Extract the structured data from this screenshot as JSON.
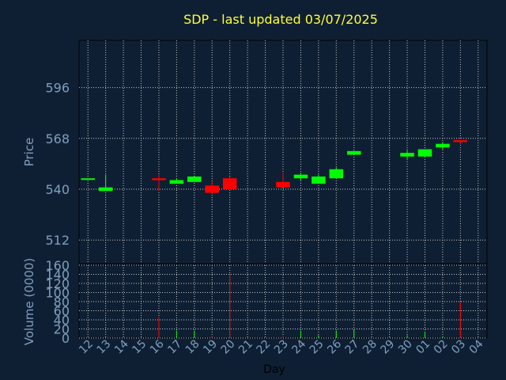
{
  "chart_data": {
    "type": "candlestick",
    "title": "SDP - last updated 03/07/2025",
    "xlabel": "Day",
    "colors": {
      "background": "#0f1f33",
      "frame": "#000000",
      "grid": "#c8c8c8",
      "tick_text": "#7f9fbf",
      "title": "#ffff33",
      "up": "#00ff00",
      "down": "#ff0000"
    },
    "days": [
      "12",
      "13",
      "14",
      "15",
      "16",
      "17",
      "18",
      "19",
      "20",
      "21",
      "22",
      "23",
      "24",
      "25",
      "26",
      "27",
      "28",
      "29",
      "30",
      "01",
      "02",
      "03",
      "04"
    ],
    "price_panel": {
      "ylabel": "Price",
      "yticks": [
        512,
        540,
        568,
        596
      ],
      "ylim": [
        499,
        622
      ],
      "candles": [
        {
          "day": "12",
          "open": 546,
          "close": 546,
          "high": 546,
          "low": 546
        },
        {
          "day": "13",
          "open": 539,
          "close": 541,
          "high": 548,
          "low": 539
        },
        {
          "day": "16",
          "open": 546,
          "close": 545,
          "high": 548,
          "low": 539
        },
        {
          "day": "17",
          "open": 543,
          "close": 545,
          "high": 546,
          "low": 543
        },
        {
          "day": "18",
          "open": 544,
          "close": 547,
          "high": 547,
          "low": 544
        },
        {
          "day": "19",
          "open": 542,
          "close": 538,
          "high": 544,
          "low": 538
        },
        {
          "day": "20",
          "open": 546,
          "close": 540,
          "high": 547,
          "low": 540
        },
        {
          "day": "23",
          "open": 544,
          "close": 541,
          "high": 549,
          "low": 541
        },
        {
          "day": "24",
          "open": 546,
          "close": 548,
          "high": 549,
          "low": 545
        },
        {
          "day": "25",
          "open": 543,
          "close": 547,
          "high": 548,
          "low": 543
        },
        {
          "day": "26",
          "open": 546,
          "close": 551,
          "high": 552,
          "low": 546
        },
        {
          "day": "27",
          "open": 559,
          "close": 561,
          "high": 561,
          "low": 559
        },
        {
          "day": "30",
          "open": 558,
          "close": 560,
          "high": 562,
          "low": 556
        },
        {
          "day": "01",
          "open": 558,
          "close": 562,
          "high": 562,
          "low": 558
        },
        {
          "day": "02",
          "open": 563,
          "close": 565,
          "high": 566,
          "low": 562
        },
        {
          "day": "03",
          "open": 567,
          "close": 566,
          "high": 567,
          "low": 565
        }
      ]
    },
    "volume_panel": {
      "ylabel": "Volume (0000)",
      "yticks": [
        0,
        20,
        40,
        60,
        80,
        100,
        120,
        140,
        160
      ],
      "ylim": [
        0,
        160
      ],
      "bars": [
        {
          "day": "16",
          "value": 46,
          "direction": "down"
        },
        {
          "day": "17",
          "value": 16,
          "direction": "up"
        },
        {
          "day": "18",
          "value": 16,
          "direction": "up"
        },
        {
          "day": "19",
          "value": 4,
          "direction": "down"
        },
        {
          "day": "20",
          "value": 141,
          "direction": "down"
        },
        {
          "day": "23",
          "value": 4,
          "direction": "down"
        },
        {
          "day": "24",
          "value": 16,
          "direction": "up"
        },
        {
          "day": "25",
          "value": 6,
          "direction": "up"
        },
        {
          "day": "26",
          "value": 16,
          "direction": "up"
        },
        {
          "day": "27",
          "value": 19,
          "direction": "up"
        },
        {
          "day": "30",
          "value": 6,
          "direction": "up"
        },
        {
          "day": "01",
          "value": 14,
          "direction": "up"
        },
        {
          "day": "02",
          "value": 4,
          "direction": "up"
        },
        {
          "day": "03",
          "value": 79,
          "direction": "down"
        }
      ]
    }
  }
}
